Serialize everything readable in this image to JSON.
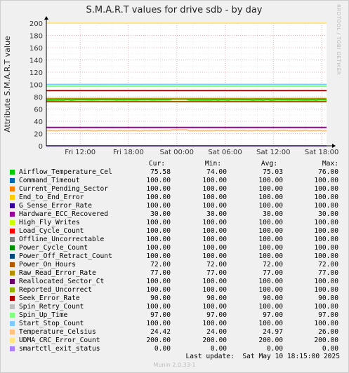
{
  "header": {
    "title": "S.M.A.R.T values for drive sdb - by day",
    "side_label": "RRDTOOL / TOBI OETIKER"
  },
  "footer": {
    "last_update": "Last update:  Sat May 10 18:15:00 2025",
    "munin": "Munin 2.0.33-1"
  },
  "legend_headers": {
    "cur": "Cur:",
    "min": "Min:",
    "avg": "Avg:",
    "max": "Max:"
  },
  "colors": {
    "plot_bg": "#ffffff",
    "grid_major": "#e0a0a0",
    "grid_minor": "#e8e8e8",
    "frame": "#f0f0f0",
    "accent": "#ff0000"
  },
  "chart_data": {
    "type": "line",
    "title": "S.M.A.R.T values for drive sdb - by day",
    "ylabel": "Attribute S.M.A.R.T value",
    "xlabel": "",
    "ylim": [
      0,
      200
    ],
    "yticks": [
      "0",
      "20",
      "40",
      "60",
      "80",
      "100",
      "120",
      "140",
      "160",
      "180",
      "200"
    ],
    "xtick_labels": [
      "Fri 12:00",
      "Fri 18:00",
      "Sat 00:00",
      "Sat 06:00",
      "Sat 12:00",
      "Sat 18:00"
    ],
    "grid": true,
    "series": [
      {
        "name": "Airflow_Temperature_Cel",
        "color": "#00cc00",
        "cur": "75.58",
        "min": "74.00",
        "avg": "75.03",
        "max": "76.00",
        "value": 75.0
      },
      {
        "name": "Command_Timeout",
        "color": "#0066b3",
        "cur": "100.00",
        "min": "100.00",
        "avg": "100.00",
        "max": "100.00",
        "value": 100
      },
      {
        "name": "Current_Pending_Sector",
        "color": "#ff8000",
        "cur": "100.00",
        "min": "100.00",
        "avg": "100.00",
        "max": "100.00",
        "value": 100
      },
      {
        "name": "End_to_End_Error",
        "color": "#ffcc00",
        "cur": "100.00",
        "min": "100.00",
        "avg": "100.00",
        "max": "100.00",
        "value": 100
      },
      {
        "name": "G_Sense_Error_Rate",
        "color": "#330099",
        "cur": "100.00",
        "min": "100.00",
        "avg": "100.00",
        "max": "100.00",
        "value": 100
      },
      {
        "name": "Hardware_ECC_Recovered",
        "color": "#990099",
        "cur": "30.00",
        "min": "30.00",
        "avg": "30.00",
        "max": "30.00",
        "value": 30
      },
      {
        "name": "High_Fly_Writes",
        "color": "#ccff00",
        "cur": "100.00",
        "min": "100.00",
        "avg": "100.00",
        "max": "100.00",
        "value": 100
      },
      {
        "name": "Load_Cycle_Count",
        "color": "#ff0000",
        "cur": "100.00",
        "min": "100.00",
        "avg": "100.00",
        "max": "100.00",
        "value": 100
      },
      {
        "name": "Offline_Uncorrectable",
        "color": "#808080",
        "cur": "100.00",
        "min": "100.00",
        "avg": "100.00",
        "max": "100.00",
        "value": 100
      },
      {
        "name": "Power_Cycle_Count",
        "color": "#008f00",
        "cur": "100.00",
        "min": "100.00",
        "avg": "100.00",
        "max": "100.00",
        "value": 100
      },
      {
        "name": "Power_Off_Retract_Count",
        "color": "#00487d",
        "cur": "100.00",
        "min": "100.00",
        "avg": "100.00",
        "max": "100.00",
        "value": 100
      },
      {
        "name": "Power_On_Hours",
        "color": "#b35a00",
        "cur": "72.00",
        "min": "72.00",
        "avg": "72.00",
        "max": "72.00",
        "value": 72
      },
      {
        "name": "Raw_Read_Error_Rate",
        "color": "#b38f00",
        "cur": "77.00",
        "min": "77.00",
        "avg": "77.00",
        "max": "77.00",
        "value": 77
      },
      {
        "name": "Reallocated_Sector_Ct",
        "color": "#6b006b",
        "cur": "100.00",
        "min": "100.00",
        "avg": "100.00",
        "max": "100.00",
        "value": 100
      },
      {
        "name": "Reported_Uncorrect",
        "color": "#8fb300",
        "cur": "100.00",
        "min": "100.00",
        "avg": "100.00",
        "max": "100.00",
        "value": 100
      },
      {
        "name": "Seek_Error_Rate",
        "color": "#b30000",
        "cur": "90.00",
        "min": "90.00",
        "avg": "90.00",
        "max": "90.00",
        "value": 90
      },
      {
        "name": "Spin_Retry_Count",
        "color": "#bebebe",
        "cur": "100.00",
        "min": "100.00",
        "avg": "100.00",
        "max": "100.00",
        "value": 100
      },
      {
        "name": "Spin_Up_Time",
        "color": "#80ff80",
        "cur": "97.00",
        "min": "97.00",
        "avg": "97.00",
        "max": "97.00",
        "value": 97
      },
      {
        "name": "Start_Stop_Count",
        "color": "#80c9ff",
        "cur": "100.00",
        "min": "100.00",
        "avg": "100.00",
        "max": "100.00",
        "value": 100
      },
      {
        "name": "Temperature_Celsius",
        "color": "#ffc080",
        "cur": "24.42",
        "min": "24.00",
        "avg": "24.97",
        "max": "26.00",
        "value": 25.0
      },
      {
        "name": "UDMA_CRC_Error_Count",
        "color": "#ffe680",
        "cur": "200.00",
        "min": "200.00",
        "avg": "200.00",
        "max": "200.00",
        "value": 200
      },
      {
        "name": "smartctl_exit_status",
        "color": "#aa80ff",
        "cur": "0.00",
        "min": "0.00",
        "avg": "0.00",
        "max": "0.00",
        "value": 0
      }
    ]
  }
}
